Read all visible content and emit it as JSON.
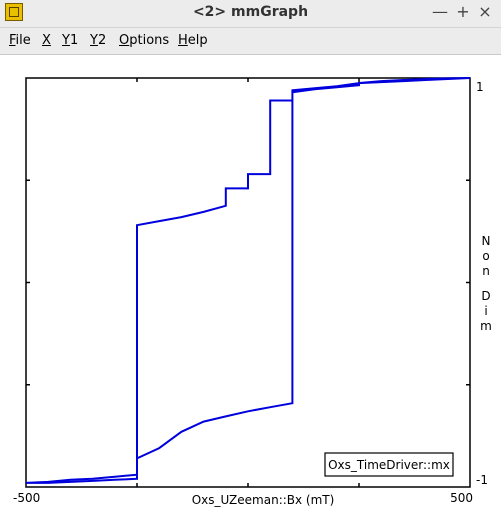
{
  "window": {
    "title": "<2> mmGraph",
    "icon": "mmgraph-app-icon",
    "controls": [
      "—",
      "+",
      "×"
    ]
  },
  "menu": [
    {
      "label": "File",
      "underline": "F",
      "rest": "ile"
    },
    {
      "label": "X",
      "underline": "X",
      "rest": ""
    },
    {
      "label": "Y1",
      "underline": "Y",
      "rest": "1"
    },
    {
      "label": "Y2",
      "underline": "Y",
      "rest": "2"
    },
    {
      "label": "Options",
      "underline": "O",
      "rest": "ptions"
    },
    {
      "label": "Help",
      "underline": "H",
      "rest": "elp"
    }
  ],
  "chart_data": {
    "type": "line",
    "xlabel": "Oxs_UZeeman::Bx (mT)",
    "ylabel": "Non Dim",
    "xlim": [
      -500,
      500
    ],
    "ylim": [
      -1,
      1
    ],
    "x_tick_labels": [
      "-500",
      "500"
    ],
    "y_tick_labels": [
      "1",
      "-1"
    ],
    "legend": {
      "label": "Oxs_TimeDriver::mx",
      "placement": "bottom-right"
    },
    "color": "#0000dd",
    "series": [
      {
        "name": "Oxs_TimeDriver::mx",
        "x": [
          -500,
          -450,
          -400,
          -350,
          -300,
          -250,
          -250,
          -200,
          -150,
          -100,
          -50,
          -50,
          0,
          0,
          50,
          50,
          100,
          100,
          150,
          200,
          250,
          250,
          300,
          350,
          400,
          450,
          500,
          500,
          450,
          400,
          350,
          300,
          250,
          200,
          150,
          100,
          100,
          50,
          0,
          -50,
          -100,
          -150,
          -200,
          -250,
          -250,
          -300,
          -350,
          -400,
          -450,
          -500
        ],
        "y": [
          -0.98,
          -0.98,
          -0.975,
          -0.97,
          -0.965,
          -0.96,
          0.28,
          0.3,
          0.32,
          0.345,
          0.375,
          0.46,
          0.46,
          0.53,
          0.53,
          0.89,
          0.89,
          0.93,
          0.945,
          0.955,
          0.965,
          0.975,
          0.985,
          0.99,
          0.995,
          0.998,
          1.0,
          1.0,
          0.995,
          0.99,
          0.985,
          0.98,
          0.975,
          0.96,
          0.95,
          0.94,
          -0.59,
          -0.61,
          -0.63,
          -0.655,
          -0.68,
          -0.73,
          -0.81,
          -0.86,
          -0.94,
          -0.95,
          -0.96,
          -0.965,
          -0.975,
          -0.98
        ]
      }
    ]
  }
}
